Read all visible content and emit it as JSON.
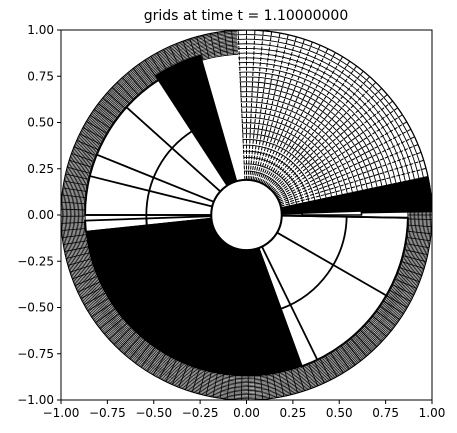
{
  "chart_data": {
    "type": "polar-grid",
    "title": "grids at time t =      1.10000000",
    "xlim": [
      -1.0,
      1.0
    ],
    "ylim": [
      -1.0,
      1.0
    ],
    "xticks": [
      "−1.00",
      "−0.75",
      "−0.50",
      "−0.25",
      "0.00",
      "0.25",
      "0.50",
      "0.75",
      "1.00"
    ],
    "yticks": [
      "1.00",
      "0.75",
      "0.50",
      "0.25",
      "0.00",
      "−0.25",
      "−0.50",
      "−0.75",
      "−1.00"
    ],
    "xtick_values": [
      -1.0,
      -0.75,
      -0.5,
      -0.25,
      0.0,
      0.25,
      0.5,
      0.75,
      1.0
    ],
    "ytick_values": [
      1.0,
      0.75,
      0.5,
      0.25,
      0.0,
      -0.25,
      -0.5,
      -0.75,
      -1.0
    ],
    "hole_radius": 0.19,
    "outer_radius": 1.0,
    "coarse_arc_radius": 0.54,
    "fine_ring_inner_radius": 0.87,
    "grid_color": "#000000",
    "blocks": [
      {
        "name": "solid-wedge-upper-left",
        "kind": "solid",
        "theta_deg": [
          106,
          123
        ],
        "r": [
          0.19,
          0.9
        ]
      },
      {
        "name": "dense-grid-upper-right",
        "kind": "dense",
        "theta_deg": [
          12,
          93
        ],
        "r": [
          0.19,
          1.0
        ]
      },
      {
        "name": "solid-wedge-right",
        "kind": "solid",
        "theta_deg": [
          1,
          12
        ],
        "r": [
          0.19,
          1.0
        ]
      },
      {
        "name": "white-wedge-right-small",
        "kind": "white",
        "theta_deg": [
          0,
          2
        ],
        "r": [
          0.3,
          0.62
        ]
      },
      {
        "name": "solid-wedge-lower-left",
        "kind": "solid",
        "theta_deg": [
          182,
          290
        ],
        "r": [
          0.19,
          0.87
        ]
      },
      {
        "name": "white-wedge-lower-center",
        "kind": "white",
        "theta_deg": [
          290,
          294
        ],
        "r": [
          0.19,
          0.87
        ]
      }
    ],
    "coarse_spokes_deg": [
      138,
      158,
      166,
      180,
      186,
      258,
      290,
      296,
      330,
      359
    ],
    "coarse_sectors_deg": [
      [
        123,
        180
      ],
      [
        182,
        186
      ],
      [
        290,
        359
      ]
    ]
  }
}
